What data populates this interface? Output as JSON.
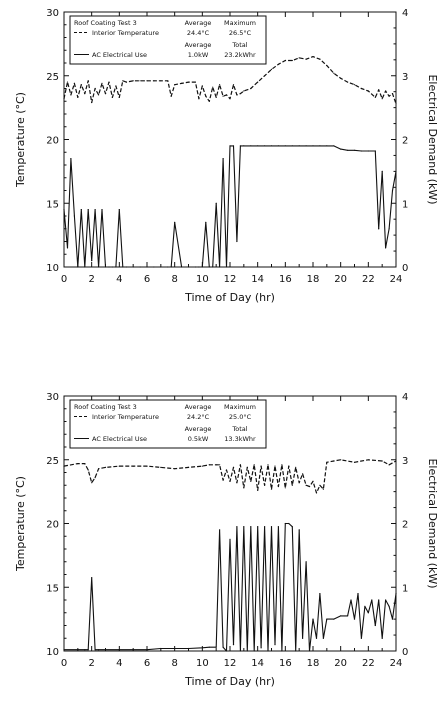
{
  "chart_data": [
    {
      "type": "line",
      "title": "",
      "xlabel": "Time of Day (hr)",
      "ylabel": "Temperature (°C)",
      "y2label": "Electrical Demand (kW)",
      "xlim": [
        0,
        24
      ],
      "ylim": [
        10,
        30
      ],
      "y2lim": [
        0,
        4
      ],
      "xticks": [
        "0",
        "2",
        "4",
        "6",
        "8",
        "10",
        "12",
        "14",
        "16",
        "18",
        "20",
        "22",
        "24"
      ],
      "yticks": [
        "10",
        "15",
        "20",
        "25",
        "30"
      ],
      "y2ticks": [
        "0",
        "1",
        "2",
        "3",
        "4"
      ],
      "legend": {
        "placement": "top-left",
        "rows": [
          [
            "Roof Coating Test 3",
            "Average",
            "Maximum"
          ],
          [
            "Interior Temperature",
            "24.4°C",
            "26.5°C"
          ],
          [
            "",
            "Average",
            "Total"
          ],
          [
            "AC Electrical Use",
            "1.0kW",
            "23.2kWhr"
          ]
        ]
      },
      "series": [
        {
          "name": "Interior Temperature",
          "axis": "left",
          "style": "dashed",
          "x": [
            0,
            0.25,
            0.5,
            0.75,
            1,
            1.25,
            1.5,
            1.75,
            2,
            2.25,
            2.5,
            2.75,
            3,
            3.25,
            3.5,
            3.75,
            4,
            4.25,
            4.5,
            5,
            5.5,
            6,
            6.5,
            7,
            7.5,
            7.75,
            8,
            8.5,
            9,
            9.5,
            9.75,
            10,
            10.25,
            10.5,
            10.75,
            11,
            11.25,
            11.5,
            11.75,
            12,
            12.25,
            12.5,
            12.75,
            13,
            13.5,
            14,
            14.5,
            15,
            15.5,
            16,
            16.5,
            17,
            17.5,
            18,
            18.5,
            19,
            19.5,
            20,
            20.5,
            21,
            21.5,
            22,
            22.5,
            22.75,
            23,
            23.25,
            23.5,
            23.75,
            24
          ],
          "values": [
            23.2,
            24.5,
            23.5,
            24.4,
            23.3,
            24.3,
            23.6,
            24.6,
            22.9,
            24.0,
            23.5,
            24.4,
            23.6,
            24.5,
            23.3,
            24.2,
            23.3,
            24.6,
            24.5,
            24.6,
            24.6,
            24.6,
            24.6,
            24.6,
            24.6,
            23.4,
            24.3,
            24.4,
            24.5,
            24.5,
            23.2,
            24.2,
            23.4,
            23.0,
            24.1,
            23.3,
            24.3,
            23.4,
            23.5,
            23.2,
            24.3,
            23.5,
            23.6,
            23.8,
            24.0,
            24.5,
            25.0,
            25.5,
            25.9,
            26.2,
            26.2,
            26.4,
            26.3,
            26.5,
            26.3,
            25.8,
            25.2,
            24.8,
            24.5,
            24.3,
            24.0,
            23.8,
            23.3,
            23.9,
            23.2,
            23.8,
            23.4,
            23.6,
            22.8
          ]
        },
        {
          "name": "AC Electrical Use",
          "axis": "right",
          "style": "solid",
          "x": [
            0,
            0.25,
            0.5,
            0.75,
            1,
            1.25,
            1.5,
            1.75,
            2,
            2.25,
            2.5,
            2.75,
            3,
            3.25,
            3.5,
            3.75,
            4,
            4.25,
            4.5,
            5,
            5.5,
            6,
            6.5,
            7,
            7.5,
            7.75,
            8,
            8.5,
            9,
            9.5,
            9.75,
            10,
            10.25,
            10.5,
            10.75,
            11,
            11.25,
            11.5,
            11.75,
            12,
            12.25,
            12.5,
            12.75,
            13,
            13.5,
            14,
            14.5,
            15,
            15.5,
            16,
            16.5,
            17,
            17.5,
            18,
            18.5,
            19,
            19.5,
            20,
            20.5,
            21,
            21.5,
            22,
            22.5,
            22.75,
            23,
            23.25,
            23.5,
            23.75,
            24
          ],
          "values": [
            0.9,
            0.3,
            1.7,
            0.8,
            0.0,
            0.9,
            0.0,
            0.9,
            0.1,
            0.9,
            0.0,
            0.9,
            0.0,
            0.0,
            0.0,
            0.0,
            0.9,
            0.0,
            0.0,
            0.0,
            0.0,
            0.0,
            0.0,
            0.0,
            0.0,
            0.0,
            0.7,
            0.0,
            0.0,
            0.0,
            0.0,
            0.0,
            0.7,
            0.0,
            0.0,
            1.0,
            0.0,
            1.7,
            0.0,
            1.9,
            1.9,
            0.4,
            1.9,
            1.9,
            1.9,
            1.9,
            1.9,
            1.9,
            1.9,
            1.9,
            1.9,
            1.9,
            1.9,
            1.9,
            1.9,
            1.9,
            1.9,
            1.85,
            1.83,
            1.83,
            1.82,
            1.82,
            1.82,
            0.6,
            1.5,
            0.3,
            0.6,
            1.2,
            1.5
          ]
        }
      ]
    },
    {
      "type": "line",
      "title": "",
      "xlabel": "Time of Day (hr)",
      "ylabel": "Temperature (°C)",
      "y2label": "Electrical Demand (kW)",
      "xlim": [
        0,
        24
      ],
      "ylim": [
        10,
        30
      ],
      "y2lim": [
        0,
        4
      ],
      "xticks": [
        "0",
        "2",
        "4",
        "6",
        "8",
        "10",
        "12",
        "14",
        "16",
        "18",
        "20",
        "22",
        "24"
      ],
      "yticks": [
        "10",
        "15",
        "20",
        "25",
        "30"
      ],
      "y2ticks": [
        "0",
        "1",
        "2",
        "3",
        "4"
      ],
      "legend": {
        "placement": "top-left",
        "rows": [
          [
            "Roof Coating Test 3",
            "Average",
            "Maximum"
          ],
          [
            "Interior Temperature",
            "24.2°C",
            "25.0°C"
          ],
          [
            "",
            "Average",
            "Total"
          ],
          [
            "AC Electrical Use",
            "0.5kW",
            "13.3kWhr"
          ]
        ]
      },
      "series": [
        {
          "name": "Interior Temperature",
          "axis": "left",
          "style": "dashed",
          "x": [
            0,
            1,
            1.5,
            1.75,
            2,
            2.25,
            2.5,
            3,
            4,
            5,
            6,
            7,
            8,
            9,
            10,
            10.5,
            11,
            11.25,
            11.5,
            11.75,
            12,
            12.25,
            12.5,
            12.75,
            13,
            13.25,
            13.5,
            13.75,
            14,
            14.25,
            14.5,
            14.75,
            15,
            15.25,
            15.5,
            15.75,
            16,
            16.25,
            16.5,
            16.75,
            17,
            17.25,
            17.5,
            17.75,
            18,
            18.25,
            18.5,
            18.75,
            19,
            19.5,
            20,
            21,
            22,
            23,
            23.5,
            24
          ],
          "values": [
            24.5,
            24.7,
            24.7,
            24.2,
            23.2,
            23.6,
            24.3,
            24.4,
            24.5,
            24.5,
            24.5,
            24.4,
            24.3,
            24.4,
            24.5,
            24.6,
            24.6,
            24.6,
            23.4,
            24.2,
            23.3,
            24.4,
            23.2,
            24.6,
            22.8,
            24.4,
            23.3,
            24.6,
            22.6,
            24.5,
            23.0,
            24.6,
            22.7,
            24.5,
            22.9,
            24.6,
            22.8,
            24.5,
            23.0,
            24.4,
            23.2,
            23.9,
            23.0,
            22.9,
            23.3,
            22.4,
            23.0,
            22.7,
            24.8,
            24.9,
            25.0,
            24.8,
            25.0,
            24.9,
            24.6,
            24.9
          ]
        },
        {
          "name": "AC Electrical Use",
          "axis": "right",
          "style": "solid",
          "x": [
            0,
            1,
            1.5,
            1.75,
            2,
            2.25,
            2.5,
            3,
            4,
            5,
            6,
            7,
            8,
            9,
            10,
            10.5,
            11,
            11.25,
            11.5,
            11.75,
            12,
            12.25,
            12.5,
            12.75,
            13,
            13.25,
            13.5,
            13.75,
            14,
            14.25,
            14.5,
            14.75,
            15,
            15.25,
            15.5,
            15.75,
            16,
            16.25,
            16.5,
            16.75,
            17,
            17.25,
            17.5,
            17.75,
            18,
            18.25,
            18.5,
            18.75,
            19,
            19.5,
            20,
            20.5,
            20.75,
            21,
            21.25,
            21.5,
            21.75,
            22,
            22.25,
            22.5,
            22.75,
            23,
            23.25,
            23.5,
            23.75,
            24
          ],
          "values": [
            0.02,
            0.02,
            0.02,
            0.02,
            1.15,
            0.02,
            0.02,
            0.02,
            0.02,
            0.02,
            0.02,
            0.04,
            0.04,
            0.04,
            0.05,
            0.06,
            0.06,
            1.9,
            0.06,
            0.0,
            1.75,
            0.1,
            1.95,
            0.0,
            1.95,
            0.0,
            1.95,
            0.0,
            1.95,
            0.05,
            1.95,
            0.0,
            1.95,
            0.1,
            1.95,
            0.0,
            2.0,
            2.0,
            1.95,
            0.0,
            1.9,
            0.2,
            1.4,
            0.0,
            0.5,
            0.2,
            0.9,
            0.2,
            0.5,
            0.5,
            0.55,
            0.55,
            0.8,
            0.5,
            0.9,
            0.2,
            0.7,
            0.6,
            0.8,
            0.4,
            0.8,
            0.2,
            0.8,
            0.7,
            0.5,
            0.9
          ]
        }
      ]
    }
  ]
}
